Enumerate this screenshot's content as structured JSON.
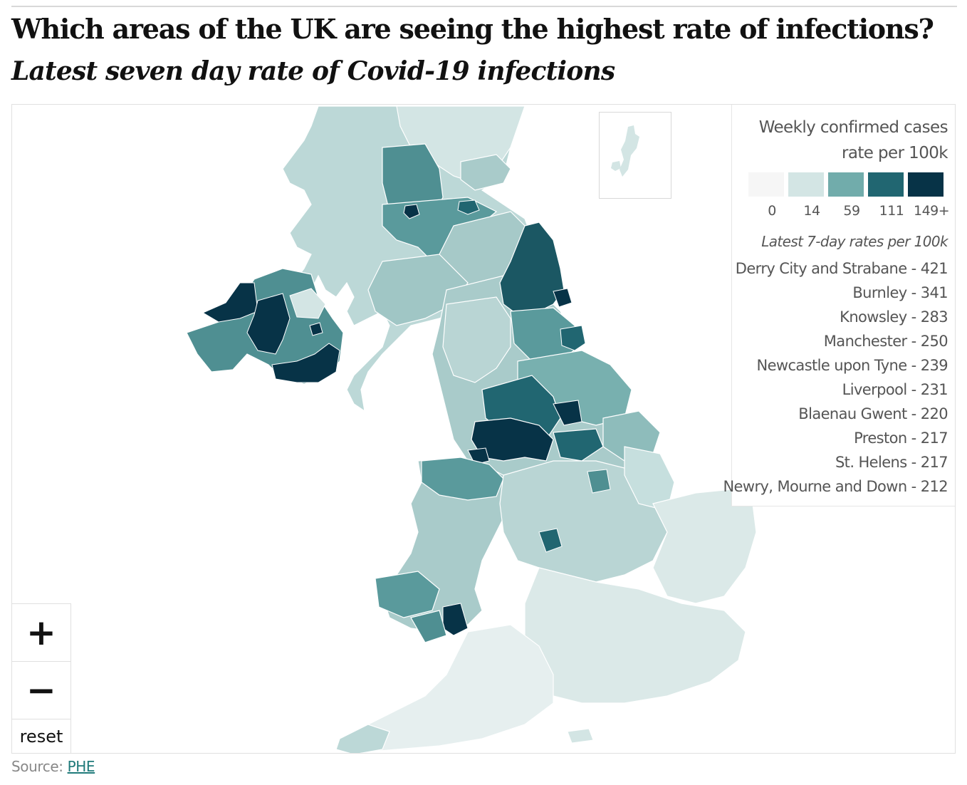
{
  "header": {
    "title": "Which areas of the UK are seeing the highest rate of infections?",
    "subtitle": "Latest seven day rate of Covid-19 infections"
  },
  "legend": {
    "title_line1": "Weekly confirmed cases",
    "title_line2": "rate per 100k",
    "bins": [
      {
        "label": "0",
        "color": "#f6f6f6"
      },
      {
        "label": "14",
        "color": "#d3e5e4"
      },
      {
        "label": "59",
        "color": "#71acab"
      },
      {
        "label": "111",
        "color": "#216671"
      },
      {
        "label": "149+",
        "color": "#073347"
      }
    ],
    "rates_title": "Latest 7-day rates per 100k",
    "rates": [
      "Derry City and Strabane - 421",
      "Burnley - 341",
      "Knowsley - 283",
      "Manchester - 250",
      "Newcastle upon Tyne - 239",
      "Liverpool - 231",
      "Blaenau Gwent - 220",
      "Preston - 217",
      "St. Helens - 217",
      "Newry, Mourne and Down - 212"
    ]
  },
  "zoom": {
    "zoom_in": "+",
    "zoom_out": "−",
    "reset": "reset"
  },
  "source": {
    "label": "Source:",
    "link": "PHE"
  },
  "colors": {
    "outline": "#ffffff",
    "lightest": "#eef4f4"
  }
}
